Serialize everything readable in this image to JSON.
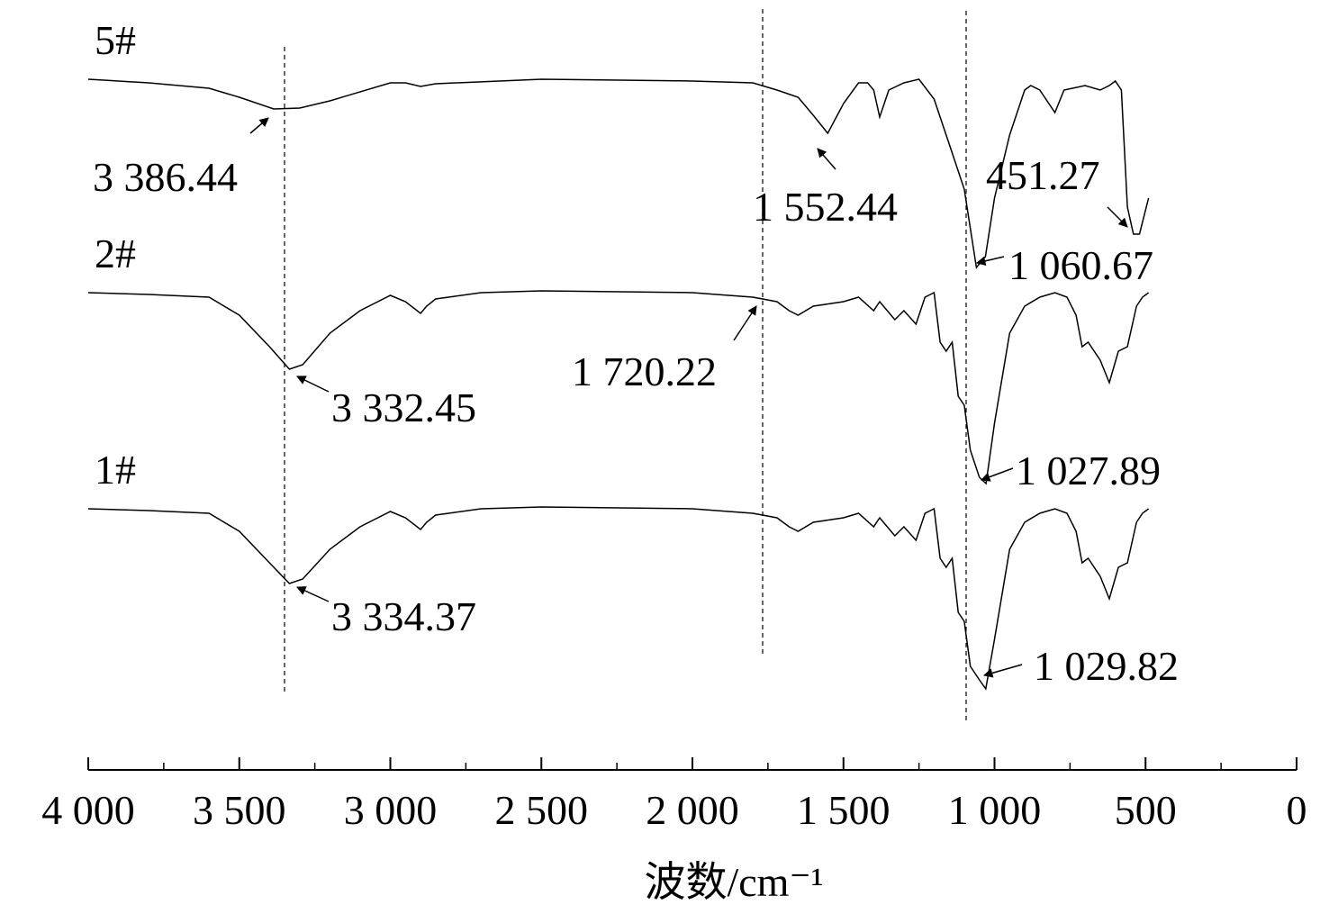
{
  "chart_data": {
    "type": "line",
    "x_label": "波数/cm⁻¹",
    "xlim": [
      4000,
      0
    ],
    "xticks": [
      {
        "value": 4000,
        "label": "4 000"
      },
      {
        "value": 3500,
        "label": "3 500"
      },
      {
        "value": 3000,
        "label": "3 000"
      },
      {
        "value": 2500,
        "label": "2 500"
      },
      {
        "value": 2000,
        "label": "2 000"
      },
      {
        "value": 1500,
        "label": "1 500"
      },
      {
        "value": 1000,
        "label": "1 000"
      },
      500,
      0
    ],
    "minor_xticks": [
      3750,
      3250,
      2750,
      2250,
      1750,
      1250,
      750,
      250
    ],
    "ylim": [
      0,
      800
    ],
    "series": [
      {
        "name": "5#",
        "color": "#000000",
        "x": [
          4000,
          3800,
          3600,
          3500,
          3386,
          3300,
          3200,
          3000,
          2950,
          2900,
          2850,
          2500,
          2000,
          1800,
          1720,
          1650,
          1600,
          1552,
          1500,
          1450,
          1420,
          1400,
          1380,
          1350,
          1300,
          1250,
          1200,
          1150,
          1100,
          1060,
          1030,
          1000,
          950,
          900,
          880,
          850,
          800,
          770,
          700,
          650,
          620,
          600,
          580,
          560,
          540,
          520,
          490
        ],
        "values": [
          767,
          763,
          757,
          747,
          734,
          735,
          743,
          763,
          763,
          759,
          762,
          767,
          765,
          763,
          755,
          747,
          727,
          707,
          740,
          763,
          763,
          755,
          725,
          755,
          763,
          767,
          745,
          695,
          645,
          558,
          570,
          635,
          705,
          755,
          760,
          755,
          730,
          755,
          760,
          755,
          760,
          765,
          755,
          625,
          595,
          595,
          635
        ]
      },
      {
        "name": "2#",
        "color": "#000000",
        "x": [
          4000,
          3800,
          3600,
          3500,
          3400,
          3334,
          3290,
          3200,
          3100,
          3000,
          2950,
          2900,
          2880,
          2850,
          2700,
          2500,
          2000,
          1800,
          1720,
          1680,
          1650,
          1600,
          1500,
          1450,
          1400,
          1380,
          1330,
          1300,
          1260,
          1230,
          1200,
          1180,
          1160,
          1140,
          1120,
          1100,
          1080,
          1050,
          1028,
          1000,
          950,
          900,
          850,
          800,
          760,
          730,
          710,
          690,
          650,
          620,
          590,
          560,
          530,
          510,
          490
        ],
        "values": [
          530,
          528,
          525,
          505,
          470,
          445,
          450,
          485,
          510,
          527,
          520,
          507,
          515,
          523,
          530,
          532,
          530,
          525,
          520,
          510,
          505,
          515,
          520,
          525,
          510,
          520,
          500,
          510,
          495,
          525,
          530,
          475,
          465,
          475,
          415,
          405,
          355,
          325,
          318,
          385,
          485,
          515,
          525,
          530,
          525,
          505,
          470,
          475,
          455,
          430,
          465,
          470,
          515,
          525,
          530
        ]
      },
      {
        "name": "1#",
        "color": "#000000",
        "x": [
          4000,
          3800,
          3600,
          3500,
          3400,
          3334,
          3290,
          3200,
          3100,
          3000,
          2950,
          2900,
          2880,
          2850,
          2700,
          2500,
          2000,
          1800,
          1720,
          1680,
          1650,
          1600,
          1500,
          1450,
          1400,
          1380,
          1330,
          1300,
          1260,
          1230,
          1200,
          1180,
          1160,
          1140,
          1120,
          1100,
          1080,
          1050,
          1029,
          1000,
          950,
          900,
          850,
          800,
          760,
          730,
          710,
          690,
          650,
          620,
          590,
          560,
          530,
          510,
          490
        ],
        "values": [
          290,
          288,
          285,
          265,
          230,
          207,
          212,
          245,
          270,
          287,
          280,
          267,
          275,
          283,
          290,
          292,
          290,
          285,
          280,
          270,
          265,
          275,
          280,
          285,
          270,
          280,
          260,
          270,
          255,
          285,
          290,
          235,
          225,
          235,
          175,
          165,
          115,
          100,
          90,
          145,
          245,
          275,
          285,
          290,
          285,
          265,
          230,
          235,
          215,
          190,
          225,
          230,
          275,
          285,
          290
        ]
      }
    ],
    "annotations": [
      "3 386.44",
      "1 552.44",
      "451.27",
      "1 060.67",
      "1 720.22",
      "3 332.45",
      "1 027.89",
      "3 334.37",
      "1 029.82"
    ]
  }
}
